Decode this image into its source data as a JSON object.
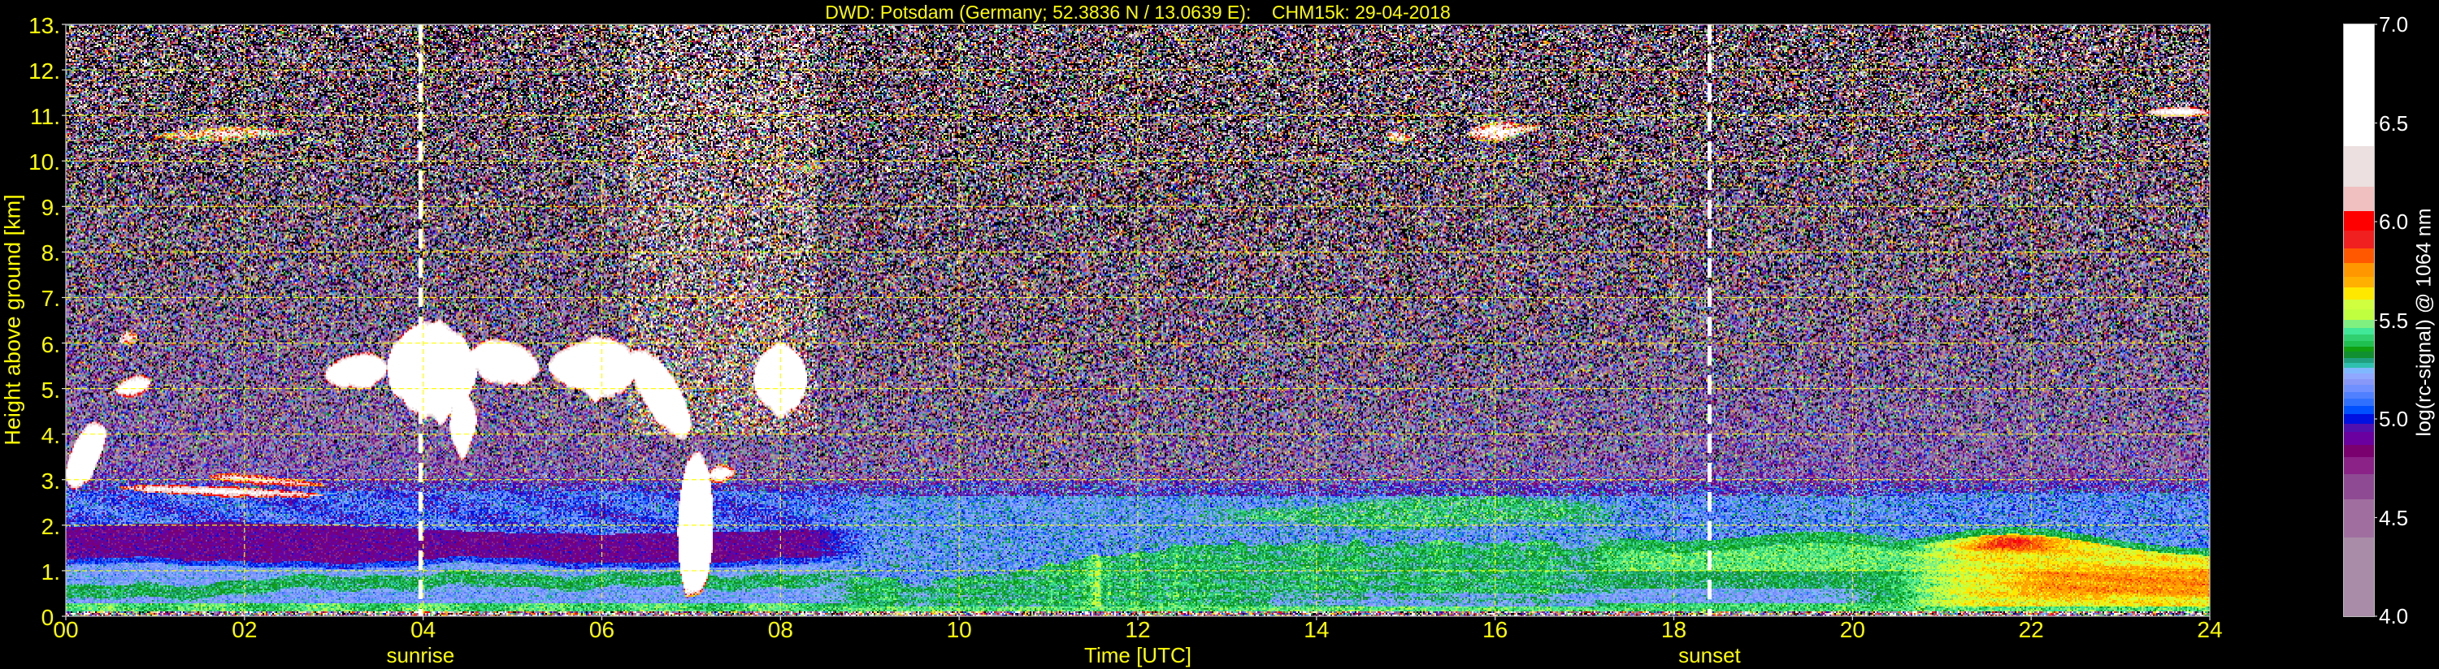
{
  "chart_data": {
    "type": "heatmap",
    "title": "DWD: Potsdam (Germany; 52.3836 N / 13.0639 E):    CHM15k: 29-04-2018",
    "xlabel": "Time [UTC]",
    "ylabel": "Height above ground [km]",
    "xlim": [
      0,
      24
    ],
    "ylim": [
      0,
      13
    ],
    "grid": true,
    "grid_color": "#ffff00",
    "x_ticks": [
      {
        "value": 0,
        "label": "00"
      },
      {
        "value": 2,
        "label": "02"
      },
      {
        "value": 4,
        "label": "04"
      },
      {
        "value": 6,
        "label": "06"
      },
      {
        "value": 8,
        "label": "08"
      },
      {
        "value": 10,
        "label": "10"
      },
      {
        "value": 12,
        "label": "12"
      },
      {
        "value": 14,
        "label": "14"
      },
      {
        "value": 16,
        "label": "16"
      },
      {
        "value": 18,
        "label": "18"
      },
      {
        "value": 20,
        "label": "20"
      },
      {
        "value": 22,
        "label": "22"
      },
      {
        "value": 24,
        "label": "24"
      }
    ],
    "y_ticks": [
      {
        "value": 0,
        "label": "0."
      },
      {
        "value": 1,
        "label": "1."
      },
      {
        "value": 2,
        "label": "2."
      },
      {
        "value": 3,
        "label": "3."
      },
      {
        "value": 4,
        "label": "4."
      },
      {
        "value": 5,
        "label": "5."
      },
      {
        "value": 6,
        "label": "6."
      },
      {
        "value": 7,
        "label": "7."
      },
      {
        "value": 8,
        "label": "8."
      },
      {
        "value": 9,
        "label": "9."
      },
      {
        "value": 10,
        "label": "10."
      },
      {
        "value": 11,
        "label": "11."
      },
      {
        "value": 12,
        "label": "12."
      },
      {
        "value": 13,
        "label": "13."
      }
    ],
    "annotations": [
      {
        "label": "sunrise",
        "time": 3.97,
        "color": "#ffffff"
      },
      {
        "label": "sunset",
        "time": 18.4,
        "color": "#ffffff"
      }
    ],
    "colorbar": {
      "label": "log(rc-signal) @ 1064 nm",
      "range": [
        4.0,
        7.0
      ],
      "ticks": [
        {
          "value": 4.0,
          "label": "4.0"
        },
        {
          "value": 4.5,
          "label": "4.5"
        },
        {
          "value": 5.0,
          "label": "5.0"
        },
        {
          "value": 5.5,
          "label": "5.5"
        },
        {
          "value": 6.0,
          "label": "6.0"
        },
        {
          "value": 6.5,
          "label": "6.5"
        },
        {
          "value": 7.0,
          "label": "7.0"
        }
      ],
      "under_color": "#000000",
      "bounds": [
        4.0,
        4.4,
        4.595,
        4.724,
        4.81,
        4.871,
        4.936,
        4.979,
        5.027,
        5.066,
        5.105,
        5.139,
        5.174,
        5.204,
        5.234,
        5.26,
        5.286,
        5.312,
        5.342,
        5.368,
        5.399,
        5.429,
        5.463,
        5.502,
        5.558,
        5.606,
        5.667,
        5.723,
        5.792,
        5.865,
        5.956,
        6.056,
        6.181,
        6.384,
        7.0
      ],
      "colors": [
        "#a98ca8",
        "#a06fa0",
        "#8e4a92",
        "#8a2288",
        "#7a0070",
        "#6a00a0",
        "#5010b0",
        "#0010e0",
        "#0050ff",
        "#3070ff",
        "#5080ff",
        "#7090ff",
        "#8898f8",
        "#90a8ff",
        "#80b8ff",
        "#30c0b0",
        "#20a080",
        "#109030",
        "#10a010",
        "#20c050",
        "#30d070",
        "#40e898",
        "#80f080",
        "#c0ff40",
        "#d0ff40",
        "#ffe800",
        "#ffb000",
        "#ff9800",
        "#ff5800",
        "#f02020",
        "#ff0000",
        "#f0c0c0",
        "#ece0e0",
        "#ffffff"
      ]
    },
    "high_signal_regions": [
      {
        "t": [
          0.0,
          0.45
        ],
        "base": [
          2.4,
          3.4
        ],
        "top": [
          3.8,
          4.6
        ],
        "peak": 6.9
      },
      {
        "t": [
          0.55,
          0.95
        ],
        "base": [
          4.7,
          4.9
        ],
        "top": [
          5.2,
          5.4
        ],
        "peak": 6.8
      },
      {
        "t": [
          0.6,
          0.8
        ],
        "base": [
          5.9,
          5.95
        ],
        "top": [
          6.25,
          6.3
        ],
        "peak": 6.6
      },
      {
        "t": [
          0.6,
          2.9
        ],
        "base": [
          2.7,
          2.55
        ],
        "top": [
          2.95,
          2.75
        ],
        "peak": 6.8
      },
      {
        "t": [
          1.6,
          2.9
        ],
        "base": [
          2.95,
          2.8
        ],
        "top": [
          3.2,
          2.95
        ],
        "peak": 6.7
      },
      {
        "t": [
          2.9,
          3.6
        ],
        "base": [
          4.9,
          5.0
        ],
        "top": [
          5.7,
          5.9
        ],
        "peak": 6.9
      },
      {
        "t": [
          3.6,
          4.6
        ],
        "base": [
          4.3,
          4.2
        ],
        "top": [
          6.6,
          6.5
        ],
        "peak": 6.95
      },
      {
        "t": [
          4.3,
          4.6
        ],
        "base": [
          3.4,
          3.6
        ],
        "top": [
          5.0,
          5.0
        ],
        "peak": 6.8
      },
      {
        "t": [
          4.5,
          5.3
        ],
        "base": [
          5.2,
          4.9
        ],
        "top": [
          6.2,
          6.0
        ],
        "peak": 6.9
      },
      {
        "t": [
          5.4,
          6.4
        ],
        "base": [
          5.0,
          4.6
        ],
        "top": [
          6.0,
          6.3
        ],
        "peak": 6.9
      },
      {
        "t": [
          6.3,
          7.0
        ],
        "base": [
          5.0,
          3.4
        ],
        "top": [
          6.3,
          5.0
        ],
        "peak": 6.9
      },
      {
        "t": [
          6.85,
          7.25
        ],
        "base": [
          0.1,
          0.1
        ],
        "top": [
          3.6,
          4.0
        ],
        "peak": 6.95
      },
      {
        "t": [
          7.2,
          7.5
        ],
        "base": [
          2.8,
          3.0
        ],
        "top": [
          3.4,
          3.3
        ],
        "peak": 6.7
      },
      {
        "t": [
          7.7,
          8.3
        ],
        "base": [
          4.3,
          4.4
        ],
        "top": [
          6.1,
          6.0
        ],
        "peak": 6.95
      },
      {
        "t": [
          1.0,
          2.6
        ],
        "base": [
          10.4,
          10.5
        ],
        "top": [
          10.7,
          10.8
        ],
        "peak": 6.4
      },
      {
        "t": [
          8.0,
          8.5
        ],
        "base": [
          9.75,
          9.8
        ],
        "top": [
          9.9,
          9.95
        ],
        "peak": 6.3
      },
      {
        "t": [
          14.8,
          15.05
        ],
        "base": [
          10.4,
          10.4
        ],
        "top": [
          10.7,
          10.6
        ],
        "peak": 6.6
      },
      {
        "t": [
          15.7,
          16.5
        ],
        "base": [
          10.3,
          10.6
        ],
        "top": [
          10.9,
          10.85
        ],
        "peak": 6.6
      },
      {
        "t": [
          23.3,
          24.0
        ],
        "base": [
          10.95,
          10.95
        ],
        "top": [
          11.2,
          11.2
        ],
        "peak": 6.9
      }
    ]
  }
}
